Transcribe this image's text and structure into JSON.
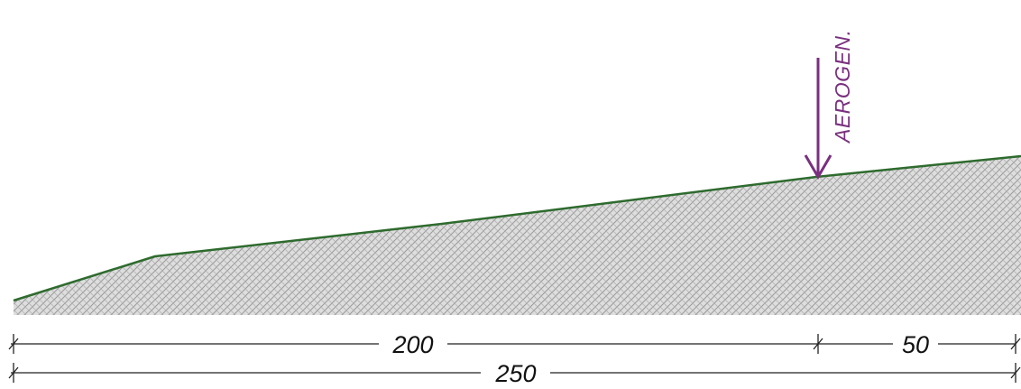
{
  "labels": {
    "turbine": "AEROGEN."
  },
  "dimensions": {
    "segment_1": "200",
    "segment_2": "50",
    "total": "250"
  },
  "colors": {
    "ground_line": "#2e6b2e",
    "ground_fill": "#c8c8c8",
    "turbine_arrow": "#7a2f7f",
    "dimension_line": "#222222"
  }
}
